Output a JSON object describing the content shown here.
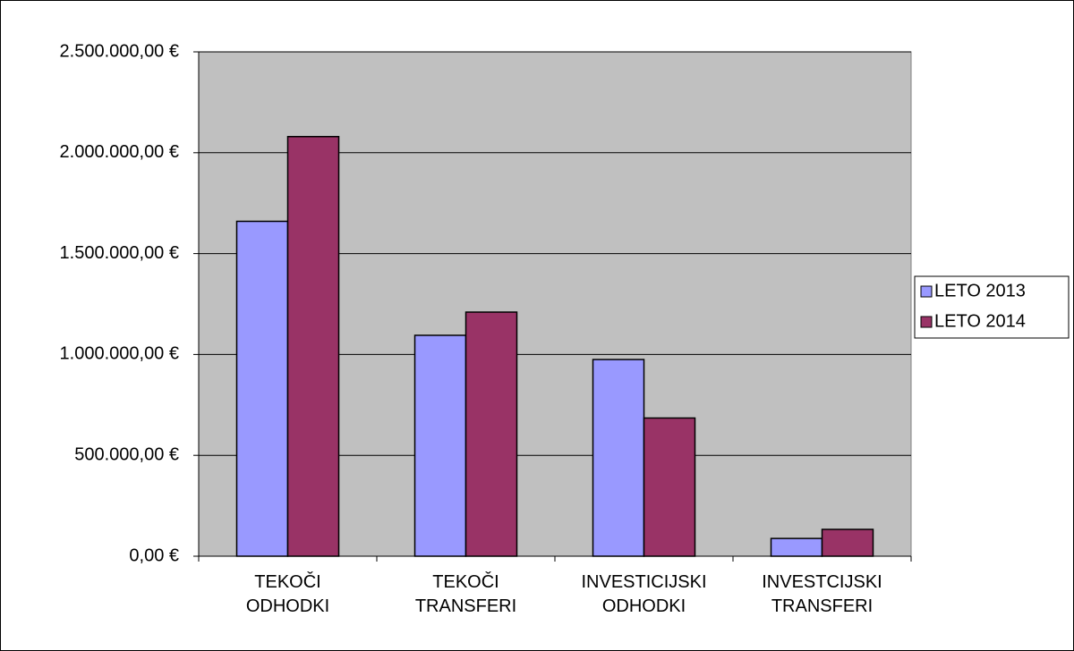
{
  "chart_data": {
    "type": "bar",
    "categories": [
      "TEKOČI ODHODKI",
      "TEKOČI TRANSFERI",
      "INVESTICIJSKI ODHODKI",
      "INVESTCIJSKI TRANSFERI"
    ],
    "series": [
      {
        "name": "LETO 2013",
        "color": "#9999ff",
        "values": [
          1660000,
          1095000,
          975000,
          88000
        ]
      },
      {
        "name": "LETO 2014",
        "color": "#993366",
        "values": [
          2080000,
          1210000,
          685000,
          133000
        ]
      }
    ],
    "ylim": [
      0,
      2500000
    ],
    "yticks": [
      {
        "value": 0,
        "label": "0,00 €"
      },
      {
        "value": 500000,
        "label": "500.000,00 €"
      },
      {
        "value": 1000000,
        "label": "1.000.000,00 €"
      },
      {
        "value": 1500000,
        "label": "1.500.000,00 €"
      },
      {
        "value": 2000000,
        "label": "2.000.000,00 €"
      },
      {
        "value": 2500000,
        "label": "2.500.000,00 €"
      }
    ],
    "grid": true,
    "legend": "right"
  }
}
